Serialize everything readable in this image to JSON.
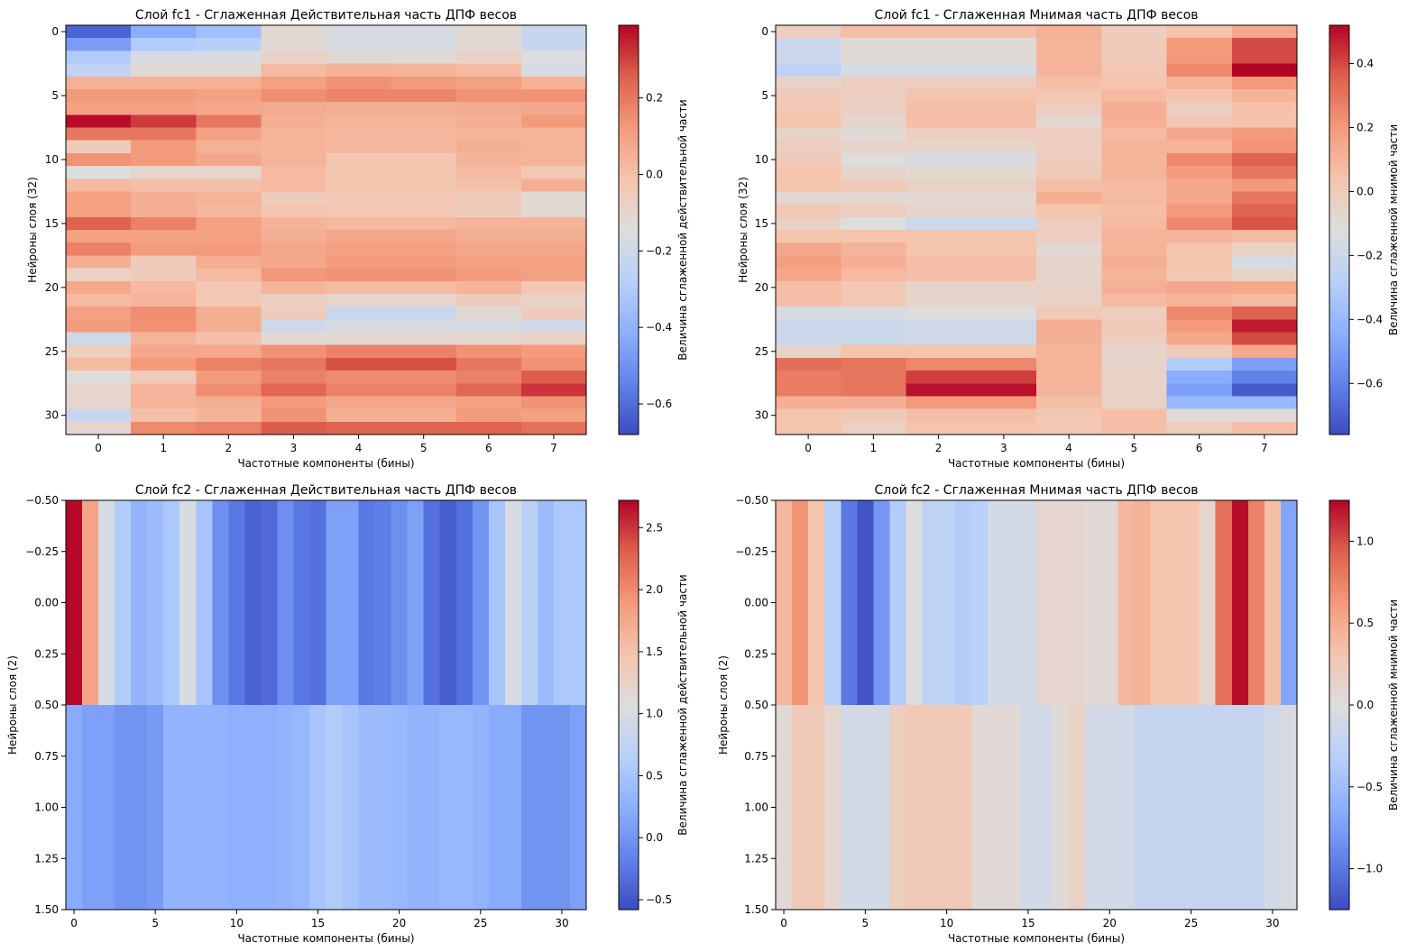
{
  "chart_data": [
    {
      "type": "heatmap",
      "title": "Слой fc1 - Сглаженная Действительная часть ДПФ весов",
      "xlabel": "Частотные компоненты (бины)",
      "ylabel": "Нейроны слоя (32)",
      "colorbar_label": "Величина сглаженной действительной части",
      "colormap": "coolwarm",
      "vmin": -0.68,
      "vmax": 0.39,
      "x_ticks": [
        0,
        1,
        2,
        3,
        4,
        5,
        6,
        7
      ],
      "y_ticks": [
        0,
        5,
        10,
        15,
        20,
        25,
        30
      ],
      "colorbar_ticks": [
        -0.6,
        -0.4,
        -0.2,
        0.0,
        0.2
      ],
      "colorbar_tick_labels": [
        "−0.6",
        "−0.4",
        "−0.2",
        "0.0",
        "0.2"
      ],
      "values": [
        [
          -0.62,
          -0.42,
          -0.35,
          -0.12,
          -0.17,
          -0.17,
          -0.12,
          -0.22
        ],
        [
          -0.47,
          -0.3,
          -0.28,
          -0.12,
          -0.17,
          -0.17,
          -0.12,
          -0.22
        ],
        [
          -0.3,
          -0.17,
          -0.17,
          -0.08,
          -0.12,
          -0.12,
          -0.08,
          -0.15
        ],
        [
          -0.25,
          -0.12,
          -0.12,
          0.02,
          0.05,
          0.04,
          0.02,
          -0.17
        ],
        [
          0.05,
          0.05,
          0.05,
          0.1,
          0.14,
          0.12,
          0.1,
          0.05
        ],
        [
          0.12,
          0.12,
          0.1,
          0.15,
          0.17,
          0.17,
          0.14,
          0.14
        ],
        [
          0.1,
          0.1,
          0.08,
          0.07,
          0.06,
          0.06,
          0.07,
          0.08
        ],
        [
          0.38,
          0.31,
          0.2,
          0.06,
          0.04,
          0.04,
          0.06,
          0.12
        ],
        [
          0.2,
          0.2,
          0.1,
          0.04,
          0.03,
          0.03,
          0.04,
          0.04
        ],
        [
          -0.05,
          0.12,
          0.05,
          0.04,
          0.03,
          0.03,
          0.06,
          0.04
        ],
        [
          0.14,
          0.12,
          0.08,
          0.04,
          -0.02,
          -0.02,
          0.04,
          0.04
        ],
        [
          -0.15,
          -0.1,
          -0.1,
          0.02,
          -0.02,
          -0.02,
          0.02,
          -0.03
        ],
        [
          0.02,
          0.0,
          0.0,
          0.02,
          -0.02,
          -0.02,
          0.0,
          0.06
        ],
        [
          0.1,
          0.06,
          0.04,
          -0.05,
          -0.03,
          -0.03,
          -0.05,
          -0.12
        ],
        [
          0.1,
          0.06,
          0.03,
          -0.02,
          -0.03,
          -0.03,
          -0.05,
          -0.12
        ],
        [
          0.25,
          0.18,
          0.1,
          0.04,
          0.03,
          0.03,
          0.04,
          0.04
        ],
        [
          0.1,
          0.1,
          0.1,
          0.06,
          0.08,
          0.08,
          0.06,
          0.06
        ],
        [
          0.18,
          0.12,
          0.12,
          0.08,
          0.1,
          0.1,
          0.08,
          0.08
        ],
        [
          0.06,
          -0.05,
          0.06,
          0.08,
          0.12,
          0.12,
          0.1,
          0.1
        ],
        [
          -0.08,
          -0.05,
          0.02,
          0.13,
          0.14,
          0.14,
          0.12,
          0.1
        ],
        [
          0.08,
          0.02,
          -0.03,
          0.04,
          0.02,
          0.02,
          0.04,
          -0.03
        ],
        [
          0.02,
          0.04,
          -0.03,
          -0.07,
          -0.1,
          -0.1,
          -0.05,
          -0.08
        ],
        [
          0.1,
          0.15,
          0.06,
          -0.05,
          -0.22,
          -0.22,
          -0.12,
          -0.05
        ],
        [
          0.12,
          0.14,
          0.06,
          -0.2,
          -0.17,
          -0.17,
          -0.17,
          -0.2
        ],
        [
          -0.2,
          0.04,
          0.0,
          -0.12,
          -0.12,
          -0.12,
          -0.1,
          -0.08
        ],
        [
          -0.06,
          0.08,
          0.08,
          0.14,
          0.18,
          0.18,
          0.14,
          0.12
        ],
        [
          0.02,
          0.12,
          0.18,
          0.2,
          0.28,
          0.28,
          0.2,
          0.14
        ],
        [
          -0.14,
          -0.05,
          0.12,
          0.18,
          0.16,
          0.16,
          0.18,
          0.26
        ],
        [
          -0.1,
          0.04,
          0.15,
          0.24,
          0.18,
          0.18,
          0.24,
          0.32
        ],
        [
          -0.1,
          0.04,
          0.06,
          0.12,
          0.08,
          0.08,
          0.1,
          0.14
        ],
        [
          -0.22,
          0.0,
          0.04,
          0.14,
          0.06,
          0.06,
          0.12,
          0.1
        ],
        [
          -0.1,
          0.16,
          0.18,
          0.26,
          0.25,
          0.25,
          0.25,
          0.22
        ]
      ]
    },
    {
      "type": "heatmap",
      "title": "Слой fc1 - Сглаженная Мнимая часть ДПФ весов",
      "xlabel": "Частотные компоненты (бины)",
      "ylabel": "Нейроны слоя (32)",
      "colorbar_label": "Величина сглаженной мнимой части",
      "colormap": "coolwarm",
      "vmin": -0.76,
      "vmax": 0.52,
      "x_ticks": [
        0,
        1,
        2,
        3,
        4,
        5,
        6,
        7
      ],
      "y_ticks": [
        0,
        5,
        10,
        15,
        20,
        25,
        30
      ],
      "colorbar_ticks": [
        -0.6,
        -0.4,
        -0.2,
        0.0,
        0.2,
        0.4
      ],
      "colorbar_tick_labels": [
        "−0.6",
        "−0.4",
        "−0.2",
        "0.0",
        "0.2",
        "0.4"
      ],
      "values": [
        [
          -0.02,
          0.06,
          0.06,
          0.06,
          0.12,
          -0.02,
          0.05,
          0.15
        ],
        [
          -0.2,
          -0.1,
          -0.1,
          -0.1,
          0.1,
          0.0,
          0.2,
          0.4
        ],
        [
          -0.2,
          -0.1,
          -0.1,
          -0.1,
          0.1,
          0.0,
          0.2,
          0.4
        ],
        [
          -0.25,
          -0.15,
          -0.15,
          -0.15,
          0.1,
          0.02,
          0.25,
          0.52
        ],
        [
          -0.05,
          -0.02,
          -0.02,
          -0.02,
          0.06,
          0.04,
          0.1,
          0.2
        ],
        [
          0.0,
          -0.02,
          0.04,
          0.04,
          0.02,
          0.08,
          0.04,
          0.1
        ],
        [
          0.02,
          -0.03,
          0.06,
          0.06,
          -0.02,
          0.12,
          -0.02,
          0.05
        ],
        [
          0.04,
          -0.06,
          0.06,
          0.06,
          -0.08,
          0.12,
          0.02,
          0.04
        ],
        [
          -0.05,
          -0.1,
          -0.02,
          -0.02,
          -0.02,
          0.08,
          0.15,
          0.2
        ],
        [
          -0.02,
          -0.06,
          -0.06,
          -0.06,
          -0.02,
          0.1,
          0.1,
          0.22
        ],
        [
          0.0,
          -0.12,
          -0.14,
          -0.14,
          -0.02,
          0.1,
          0.25,
          0.35
        ],
        [
          0.04,
          -0.06,
          -0.08,
          -0.08,
          0.0,
          0.1,
          0.2,
          0.3
        ],
        [
          0.04,
          0.0,
          -0.04,
          -0.04,
          0.06,
          0.08,
          0.15,
          0.2
        ],
        [
          -0.08,
          -0.08,
          -0.08,
          -0.08,
          0.12,
          0.08,
          0.15,
          0.3
        ],
        [
          0.02,
          -0.02,
          -0.06,
          -0.06,
          0.04,
          0.06,
          0.2,
          0.35
        ],
        [
          -0.04,
          -0.12,
          -0.2,
          -0.2,
          -0.02,
          0.08,
          0.25,
          0.38
        ],
        [
          0.04,
          0.04,
          0.04,
          0.04,
          -0.02,
          0.1,
          0.1,
          0.08
        ],
        [
          0.15,
          0.1,
          0.04,
          0.04,
          -0.08,
          0.1,
          0.04,
          -0.05
        ],
        [
          0.18,
          0.12,
          0.06,
          0.06,
          -0.06,
          0.12,
          0.04,
          -0.15
        ],
        [
          0.15,
          0.08,
          0.06,
          0.06,
          -0.06,
          0.1,
          0.02,
          -0.05
        ],
        [
          0.06,
          0.02,
          -0.06,
          -0.06,
          -0.05,
          0.12,
          0.15,
          0.15
        ],
        [
          0.06,
          0.02,
          -0.06,
          -0.06,
          -0.05,
          0.08,
          0.1,
          0.08
        ],
        [
          -0.15,
          -0.15,
          -0.12,
          -0.12,
          0.0,
          -0.02,
          0.25,
          0.35
        ],
        [
          -0.2,
          -0.2,
          -0.18,
          -0.18,
          0.12,
          0.0,
          0.2,
          0.48
        ],
        [
          -0.2,
          -0.2,
          -0.18,
          -0.18,
          0.12,
          -0.02,
          0.15,
          0.4
        ],
        [
          -0.05,
          0.04,
          0.04,
          0.04,
          0.1,
          -0.06,
          0.0,
          0.15
        ],
        [
          0.32,
          0.3,
          0.25,
          0.25,
          0.1,
          -0.06,
          -0.3,
          -0.5
        ],
        [
          0.28,
          0.3,
          0.42,
          0.42,
          0.1,
          -0.04,
          -0.45,
          -0.6
        ],
        [
          0.28,
          0.3,
          0.5,
          0.5,
          0.1,
          -0.04,
          -0.5,
          -0.72
        ],
        [
          0.12,
          0.12,
          0.2,
          0.2,
          0.06,
          -0.04,
          -0.4,
          -0.4
        ],
        [
          0.04,
          0.0,
          0.06,
          0.06,
          0.02,
          0.06,
          -0.1,
          -0.1
        ],
        [
          0.04,
          -0.04,
          0.04,
          0.04,
          0.02,
          0.06,
          -0.02,
          0.06
        ]
      ]
    },
    {
      "type": "heatmap",
      "title": "Слой fc2 - Сглаженная Действительная часть ДПФ весов",
      "xlabel": "Частотные компоненты (бины)",
      "ylabel": "Нейроны слоя (2)",
      "colorbar_label": "Величина сглаженной действительной части",
      "colormap": "coolwarm",
      "vmin": -0.58,
      "vmax": 2.72,
      "x_ticks": [
        0,
        5,
        10,
        15,
        20,
        25,
        30
      ],
      "y_ticks": [
        -0.5,
        -0.25,
        0.0,
        0.25,
        0.5,
        0.75,
        1.0,
        1.25,
        1.5
      ],
      "y_tick_labels": [
        "−0.50",
        "−0.25",
        "0.00",
        "0.25",
        "0.50",
        "0.75",
        "1.00",
        "1.25",
        "1.50"
      ],
      "colorbar_ticks": [
        -0.5,
        0.0,
        0.5,
        1.0,
        1.5,
        2.0,
        2.5
      ],
      "colorbar_tick_labels": [
        "−0.5",
        "0.0",
        "0.5",
        "1.0",
        "1.5",
        "2.0",
        "2.5"
      ],
      "values": [
        [
          2.7,
          1.8,
          1.0,
          0.6,
          0.3,
          0.4,
          0.55,
          1.0,
          0.5,
          -0.05,
          -0.25,
          -0.4,
          -0.35,
          -0.05,
          -0.25,
          -0.3,
          0.1,
          0.1,
          -0.25,
          -0.2,
          -0.05,
          0.1,
          -0.3,
          -0.45,
          -0.3,
          0.0,
          0.5,
          1.0,
          0.7,
          0.4,
          0.55,
          0.55
        ],
        [
          0.2,
          0.1,
          0.1,
          0.0,
          0.0,
          0.05,
          0.3,
          0.3,
          0.3,
          0.3,
          0.25,
          0.25,
          0.25,
          0.3,
          0.35,
          0.5,
          0.6,
          0.5,
          0.4,
          0.4,
          0.35,
          0.3,
          0.3,
          0.35,
          0.35,
          0.3,
          0.2,
          0.2,
          0.0,
          0.0,
          0.0,
          0.1
        ]
      ]
    },
    {
      "type": "heatmap",
      "title": "Слой fc2 - Сглаженная Мнимая часть ДПФ весов",
      "xlabel": "Частотные компоненты (бины)",
      "ylabel": "Нейроны слоя (2)",
      "colorbar_label": "Величина сглаженной мнимой части",
      "colormap": "coolwarm",
      "vmin": -1.25,
      "vmax": 1.25,
      "x_ticks": [
        0,
        5,
        10,
        15,
        20,
        25,
        30
      ],
      "y_ticks": [
        -0.5,
        -0.25,
        0.0,
        0.25,
        0.5,
        0.75,
        1.0,
        1.25,
        1.5
      ],
      "y_tick_labels": [
        "−0.50",
        "−0.25",
        "0.00",
        "0.25",
        "0.50",
        "0.75",
        "1.00",
        "1.25",
        "1.50"
      ],
      "colorbar_ticks": [
        -1.0,
        -0.5,
        0.0,
        0.5,
        1.0
      ],
      "colorbar_tick_labels": [
        "−1.0",
        "−0.5",
        "0.0",
        "0.5",
        "1.0"
      ],
      "values": [
        [
          0.4,
          0.65,
          0.3,
          -0.3,
          -1.0,
          -1.2,
          -0.8,
          -0.35,
          0.0,
          -0.25,
          -0.25,
          -0.35,
          -0.3,
          -0.1,
          -0.1,
          -0.1,
          0.1,
          0.1,
          0.1,
          0.05,
          0.05,
          0.4,
          0.45,
          0.3,
          0.3,
          0.3,
          0.1,
          0.85,
          1.22,
          0.75,
          0.35,
          -0.7
        ],
        [
          0.05,
          0.25,
          0.25,
          0.1,
          -0.1,
          -0.1,
          -0.1,
          0.2,
          0.25,
          0.25,
          0.25,
          0.25,
          0.05,
          0.05,
          0.05,
          -0.1,
          -0.1,
          0.05,
          0.15,
          -0.1,
          -0.1,
          -0.1,
          -0.2,
          -0.2,
          -0.2,
          -0.2,
          -0.2,
          -0.2,
          -0.2,
          -0.2,
          -0.1,
          -0.05
        ]
      ]
    }
  ]
}
